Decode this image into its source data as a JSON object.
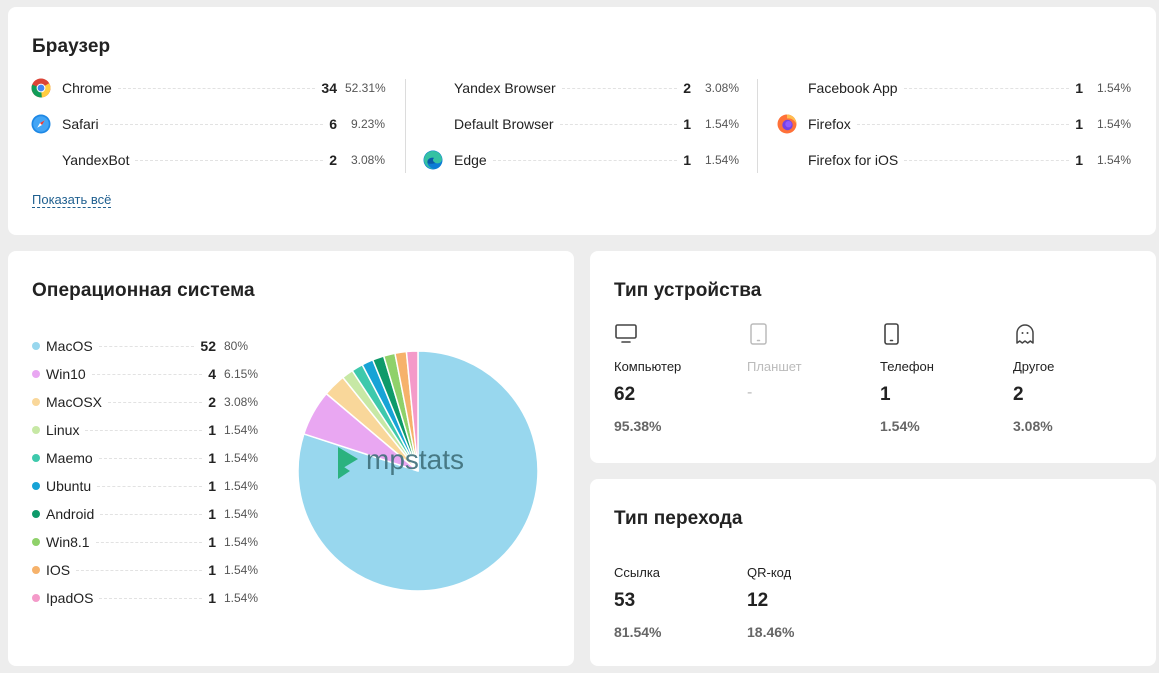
{
  "browser": {
    "title": "Браузер",
    "show_all": "Показать всё",
    "items": [
      {
        "name": "Chrome",
        "count": "34",
        "pct": "52.31%",
        "icon": "chrome-icon"
      },
      {
        "name": "Safari",
        "count": "6",
        "pct": "9.23%",
        "icon": "safari-icon"
      },
      {
        "name": "YandexBot",
        "count": "2",
        "pct": "3.08%",
        "icon": ""
      },
      {
        "name": "Yandex Browser",
        "count": "2",
        "pct": "3.08%",
        "icon": ""
      },
      {
        "name": "Default Browser",
        "count": "1",
        "pct": "1.54%",
        "icon": ""
      },
      {
        "name": "Edge",
        "count": "1",
        "pct": "1.54%",
        "icon": "edge-icon"
      },
      {
        "name": "Facebook App",
        "count": "1",
        "pct": "1.54%",
        "icon": ""
      },
      {
        "name": "Firefox",
        "count": "1",
        "pct": "1.54%",
        "icon": "firefox-icon"
      },
      {
        "name": "Firefox for iOS",
        "count": "1",
        "pct": "1.54%",
        "icon": ""
      }
    ]
  },
  "os": {
    "title": "Операционная система",
    "watermark": "mpstats",
    "items": [
      {
        "name": "MacOS",
        "count": "52",
        "pct": "80%",
        "color": "#98d7ee"
      },
      {
        "name": "Win10",
        "count": "4",
        "pct": "6.15%",
        "color": "#e9a7f2"
      },
      {
        "name": "MacOSX",
        "count": "2",
        "pct": "3.08%",
        "color": "#f9d79a"
      },
      {
        "name": "Linux",
        "count": "1",
        "pct": "1.54%",
        "color": "#c7e8a5"
      },
      {
        "name": "Maemo",
        "count": "1",
        "pct": "1.54%",
        "color": "#3ec9ac"
      },
      {
        "name": "Ubuntu",
        "count": "1",
        "pct": "1.54%",
        "color": "#17a3d6"
      },
      {
        "name": "Android",
        "count": "1",
        "pct": "1.54%",
        "color": "#0e9a6a"
      },
      {
        "name": "Win8.1",
        "count": "1",
        "pct": "1.54%",
        "color": "#8fd16a"
      },
      {
        "name": "IOS",
        "count": "1",
        "pct": "1.54%",
        "color": "#f6b26b"
      },
      {
        "name": "IpadOS",
        "count": "1",
        "pct": "1.54%",
        "color": "#f49ac9"
      }
    ]
  },
  "chart_data": {
    "type": "pie",
    "categories": [
      "MacOS",
      "Win10",
      "MacOSX",
      "Linux",
      "Maemo",
      "Ubuntu",
      "Android",
      "Win8.1",
      "IOS",
      "IpadOS"
    ],
    "values": [
      52,
      4,
      2,
      1,
      1,
      1,
      1,
      1,
      1,
      1
    ],
    "title": "",
    "colors": [
      "#98d7ee",
      "#e9a7f2",
      "#f9d79a",
      "#c7e8a5",
      "#3ec9ac",
      "#17a3d6",
      "#0e9a6a",
      "#8fd16a",
      "#f6b26b",
      "#f49ac9"
    ]
  },
  "device": {
    "title": "Тип устройства",
    "items": [
      {
        "label": "Компьютер",
        "value": "62",
        "pct": "95.38%",
        "icon": "monitor-icon"
      },
      {
        "label": "Планшет",
        "value": "-",
        "pct": "",
        "icon": "tablet-icon"
      },
      {
        "label": "Телефон",
        "value": "1",
        "pct": "1.54%",
        "icon": "phone-icon"
      },
      {
        "label": "Другое",
        "value": "2",
        "pct": "3.08%",
        "icon": "ghost-icon"
      }
    ]
  },
  "transition": {
    "title": "Тип перехода",
    "items": [
      {
        "label": "Ссылка",
        "value": "53",
        "pct": "81.54%"
      },
      {
        "label": "QR-код",
        "value": "12",
        "pct": "18.46%"
      }
    ]
  }
}
